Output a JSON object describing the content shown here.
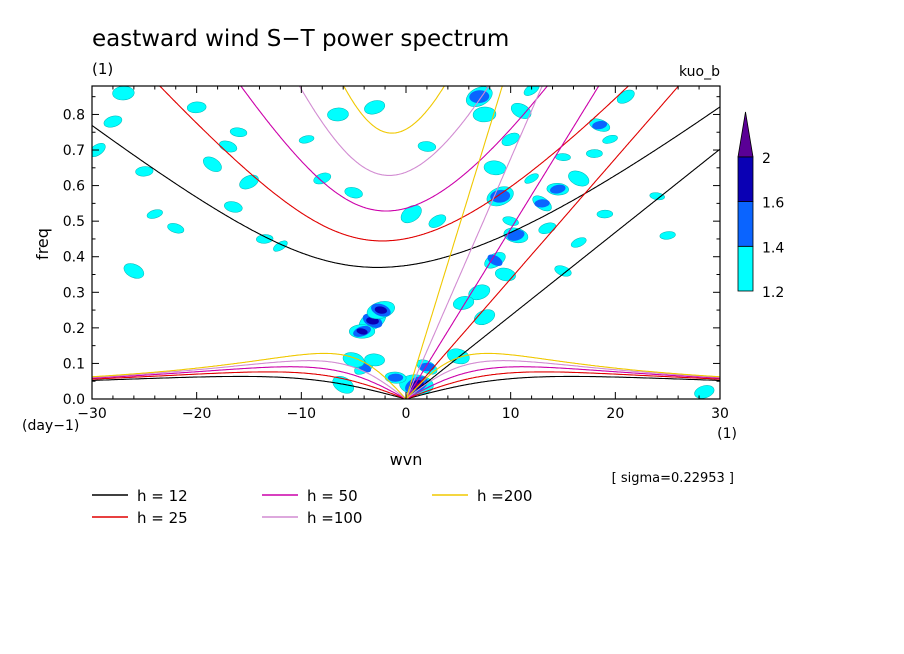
{
  "chart_data": {
    "type": "heatmap",
    "title": "eastward wind S−T power spectrum",
    "subtitle_left": "(1)",
    "subtitle_right": "kuo_b",
    "xlabel": "wvn",
    "xunit": "(1)",
    "ylabel": "freq",
    "yunit": "(day−1)",
    "xlim": [
      -30,
      30
    ],
    "ylim": [
      0,
      0.88
    ],
    "xticks": [
      -30,
      -20,
      -10,
      0,
      10,
      20,
      30
    ],
    "xtick_labels": [
      "−30",
      "−20",
      "−10",
      "0",
      "10",
      "20",
      "30"
    ],
    "yticks": [
      0.0,
      0.1,
      0.2,
      0.3,
      0.4,
      0.5,
      0.6,
      0.7,
      0.8
    ],
    "ytick_labels": [
      "0.0",
      "0.1",
      "0.2",
      "0.3",
      "0.4",
      "0.5",
      "0.6",
      "0.7",
      "0.8"
    ],
    "sigma_text": "[ sigma=0.22953 ]",
    "colorbar": {
      "levels": [
        1.2,
        1.4,
        1.6,
        2
      ],
      "level_labels": [
        "1.2",
        "1.4",
        "1.6",
        "2"
      ],
      "colors": [
        "#00ffff",
        "#0a64ff",
        "#0a00b4",
        "#5a0096"
      ]
    },
    "series": [
      {
        "name": "h = 12",
        "h": 12,
        "color": "#000000"
      },
      {
        "name": "h = 25",
        "h": 25,
        "color": "#e00000"
      },
      {
        "name": "h = 50",
        "h": 50,
        "color": "#cc00aa"
      },
      {
        "name": "h =100",
        "h": 100,
        "color": "#d28cd2"
      },
      {
        "name": "h =200",
        "h": 200,
        "color": "#f0c800"
      }
    ],
    "blobs": [
      {
        "x": 1.0,
        "y": 0.04,
        "level": 3
      },
      {
        "x": -3.2,
        "y": 0.22,
        "level": 2
      },
      {
        "x": -2.4,
        "y": 0.25,
        "level": 2
      },
      {
        "x": -4.2,
        "y": 0.19,
        "level": 2
      },
      {
        "x": -1.0,
        "y": 0.06,
        "level": 1
      },
      {
        "x": -4.0,
        "y": 0.09,
        "level": 1
      },
      {
        "x": 7.0,
        "y": 0.85,
        "level": 1
      },
      {
        "x": 9.0,
        "y": 0.57,
        "level": 1
      },
      {
        "x": 10.5,
        "y": 0.46,
        "level": 1
      },
      {
        "x": 13.0,
        "y": 0.55,
        "level": 1
      },
      {
        "x": 14.5,
        "y": 0.59,
        "level": 1
      },
      {
        "x": 18.5,
        "y": 0.77,
        "level": 1
      },
      {
        "x": 8.5,
        "y": 0.39,
        "level": 1
      },
      {
        "x": 2.0,
        "y": 0.09,
        "level": 1
      },
      {
        "x": -16.0,
        "y": 0.75,
        "level": 0
      },
      {
        "x": -17.0,
        "y": 0.71,
        "level": 0
      },
      {
        "x": -15.0,
        "y": 0.61,
        "level": 0
      },
      {
        "x": -13.5,
        "y": 0.45,
        "level": 0
      },
      {
        "x": -12.0,
        "y": 0.43,
        "level": 0
      },
      {
        "x": -16.5,
        "y": 0.54,
        "level": 0
      },
      {
        "x": -18.5,
        "y": 0.66,
        "level": 0
      },
      {
        "x": -25.0,
        "y": 0.64,
        "level": 0
      },
      {
        "x": -20.0,
        "y": 0.82,
        "level": 0
      },
      {
        "x": -27.0,
        "y": 0.86,
        "level": 0
      },
      {
        "x": -28.0,
        "y": 0.78,
        "level": 0
      },
      {
        "x": -22.0,
        "y": 0.48,
        "level": 0
      },
      {
        "x": -24.0,
        "y": 0.52,
        "level": 0
      },
      {
        "x": -26.0,
        "y": 0.36,
        "level": 0
      },
      {
        "x": -6.0,
        "y": 0.04,
        "level": 0
      },
      {
        "x": -5.0,
        "y": 0.11,
        "level": 0
      },
      {
        "x": -3.0,
        "y": 0.11,
        "level": 0
      },
      {
        "x": -9.5,
        "y": 0.73,
        "level": 0
      },
      {
        "x": -8.0,
        "y": 0.62,
        "level": 0
      },
      {
        "x": -5.0,
        "y": 0.58,
        "level": 0
      },
      {
        "x": -3.0,
        "y": 0.82,
        "level": 0
      },
      {
        "x": 0.5,
        "y": 0.52,
        "level": 0
      },
      {
        "x": 2.0,
        "y": 0.71,
        "level": 0
      },
      {
        "x": 3.0,
        "y": 0.5,
        "level": 0
      },
      {
        "x": 7.5,
        "y": 0.8,
        "level": 0
      },
      {
        "x": 8.5,
        "y": 0.65,
        "level": 0
      },
      {
        "x": 10.0,
        "y": 0.73,
        "level": 0
      },
      {
        "x": 11.0,
        "y": 0.81,
        "level": 0
      },
      {
        "x": 12.0,
        "y": 0.87,
        "level": 0
      },
      {
        "x": 10.0,
        "y": 0.5,
        "level": 0
      },
      {
        "x": 9.5,
        "y": 0.35,
        "level": 0
      },
      {
        "x": 7.0,
        "y": 0.3,
        "level": 0
      },
      {
        "x": 7.5,
        "y": 0.23,
        "level": 0
      },
      {
        "x": 12.0,
        "y": 0.62,
        "level": 0
      },
      {
        "x": 15.0,
        "y": 0.68,
        "level": 0
      },
      {
        "x": 16.5,
        "y": 0.62,
        "level": 0
      },
      {
        "x": 18.0,
        "y": 0.69,
        "level": 0
      },
      {
        "x": 19.5,
        "y": 0.73,
        "level": 0
      },
      {
        "x": 21.0,
        "y": 0.85,
        "level": 0
      },
      {
        "x": 13.5,
        "y": 0.48,
        "level": 0
      },
      {
        "x": 15.0,
        "y": 0.36,
        "level": 0
      },
      {
        "x": 16.5,
        "y": 0.44,
        "level": 0
      },
      {
        "x": 24.0,
        "y": 0.57,
        "level": 0
      },
      {
        "x": 25.0,
        "y": 0.46,
        "level": 0
      },
      {
        "x": 19.0,
        "y": 0.52,
        "level": 0
      },
      {
        "x": -29.5,
        "y": 0.7,
        "level": 0
      },
      {
        "x": -6.5,
        "y": 0.8,
        "level": 0
      },
      {
        "x": 5.5,
        "y": 0.27,
        "level": 0
      },
      {
        "x": 5.0,
        "y": 0.12,
        "level": 0
      },
      {
        "x": 28.5,
        "y": 0.02,
        "level": 0
      }
    ]
  }
}
